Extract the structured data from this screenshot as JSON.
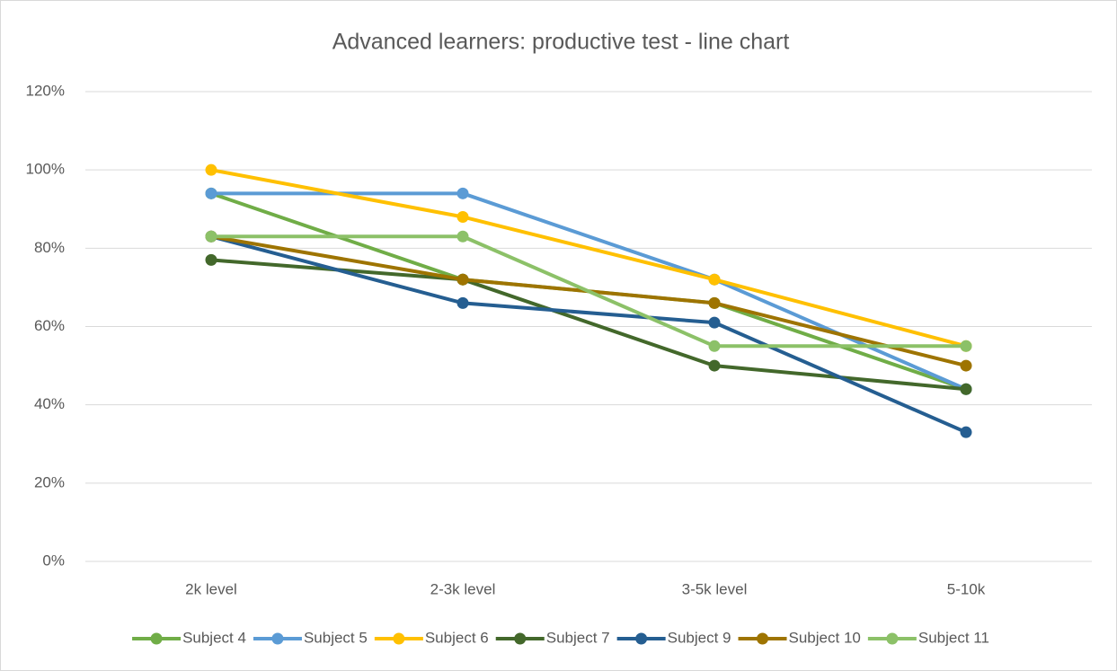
{
  "chart_data": {
    "type": "line",
    "title": "Advanced learners: productive test - line chart",
    "categories": [
      "2k level",
      "2-3k level",
      "3-5k level",
      "5-10k"
    ],
    "series": [
      {
        "name": "Subject 4",
        "color": "#70ad47",
        "values": [
          94,
          72,
          66,
          44
        ]
      },
      {
        "name": "Subject 5",
        "color": "#5b9bd5",
        "values": [
          94,
          94,
          72,
          44
        ]
      },
      {
        "name": "Subject 6",
        "color": "#ffc000",
        "values": [
          100,
          88,
          72,
          55
        ]
      },
      {
        "name": "Subject 7",
        "color": "#43682b",
        "values": [
          77,
          72,
          50,
          44
        ]
      },
      {
        "name": "Subject 9",
        "color": "#255e91",
        "values": [
          83,
          66,
          61,
          33
        ]
      },
      {
        "name": "Subject 10",
        "color": "#9e7400",
        "values": [
          83,
          72,
          66,
          50
        ]
      },
      {
        "name": "Subject 11",
        "color": "#8cc168",
        "values": [
          83,
          83,
          55,
          55
        ]
      }
    ],
    "ylim": [
      0,
      120
    ],
    "yticks": [
      {
        "value": 0,
        "label": "0%"
      },
      {
        "value": 20,
        "label": "20%"
      },
      {
        "value": 40,
        "label": "40%"
      },
      {
        "value": 60,
        "label": "60%"
      },
      {
        "value": 80,
        "label": "80%"
      },
      {
        "value": 100,
        "label": "100%"
      },
      {
        "value": 120,
        "label": "120%"
      }
    ],
    "grid": true,
    "legend": "bottom"
  }
}
